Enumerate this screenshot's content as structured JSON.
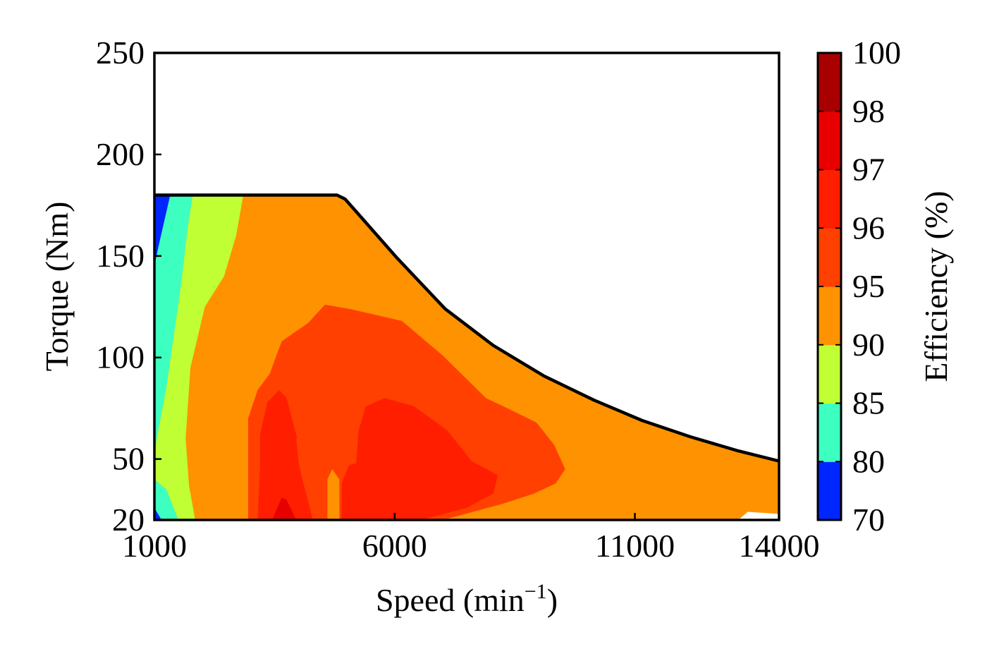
{
  "chart_data": {
    "type": "heatmap",
    "subtype": "filled-contour efficiency map",
    "title": "",
    "xlabel": "Speed (min",
    "xlabel_superscript": "−1",
    "xlabel_suffix": ")",
    "ylabel": "Torque (Nm)",
    "colorbar_label": "Efficiency (%)",
    "xlim": [
      1000,
      14000
    ],
    "ylim": [
      20,
      250
    ],
    "x_ticks": [
      1000,
      6000,
      11000,
      14000
    ],
    "x_tick_labels": [
      "1000",
      "6000",
      "11000",
      "14000"
    ],
    "y_ticks": [
      20,
      50,
      100,
      150,
      200,
      250
    ],
    "y_tick_labels": [
      "20",
      "50",
      "100",
      "150",
      "200",
      "250"
    ],
    "grid": false,
    "levels": [
      70,
      80,
      85,
      90,
      95,
      96,
      97,
      98,
      100
    ],
    "level_labels": [
      "70",
      "80",
      "85",
      "90",
      "95",
      "96",
      "97",
      "98",
      "100"
    ],
    "level_colors": [
      "#0026ff",
      "#3dffc0",
      "#c1ff35",
      "#ff9200",
      "#ff4000",
      "#ff1e00",
      "#e80000",
      "#a80000"
    ],
    "torque_envelope": [
      [
        1000,
        180
      ],
      [
        4800,
        180
      ],
      [
        4970,
        178
      ],
      [
        6050,
        149
      ],
      [
        7050,
        124
      ],
      [
        8050,
        106
      ],
      [
        9100,
        91
      ],
      [
        10150,
        79
      ],
      [
        11150,
        69
      ],
      [
        12150,
        61
      ],
      [
        13150,
        54
      ],
      [
        14000,
        49
      ]
    ],
    "regions": [
      {
        "level": "70-80",
        "color": "#0026ff",
        "polygons": [
          [
            [
              1000,
              180
            ],
            [
              1330,
              180
            ],
            [
              1090,
              155
            ],
            [
              1000,
              145
            ]
          ],
          [
            [
              1000,
              20
            ],
            [
              1150,
              20
            ],
            [
              1000,
              26
            ]
          ]
        ]
      },
      {
        "level": "80-85",
        "color": "#3dffc0",
        "polygons": [
          [
            [
              1330,
              180
            ],
            [
              1800,
              180
            ],
            [
              1700,
              165
            ],
            [
              1550,
              135
            ],
            [
              1250,
              85
            ],
            [
              1050,
              60
            ],
            [
              1000,
              50
            ],
            [
              1000,
              145
            ],
            [
              1090,
              155
            ]
          ],
          [
            [
              1150,
              20
            ],
            [
              1500,
              20
            ],
            [
              1250,
              35
            ],
            [
              1000,
              40
            ],
            [
              1000,
              26
            ]
          ]
        ]
      },
      {
        "level": "85-90",
        "color": "#c1ff35",
        "polygons": [
          [
            [
              1800,
              180
            ],
            [
              2850,
              180
            ],
            [
              2700,
              160
            ],
            [
              2450,
              140
            ],
            [
              2050,
              125
            ],
            [
              1750,
              95
            ],
            [
              1650,
              60
            ],
            [
              1720,
              37
            ],
            [
              1850,
              20
            ],
            [
              1500,
              20
            ],
            [
              1250,
              35
            ],
            [
              1000,
              40
            ],
            [
              1000,
              50
            ],
            [
              1050,
              60
            ],
            [
              1250,
              85
            ],
            [
              1550,
              135
            ],
            [
              1700,
              165
            ]
          ]
        ]
      }
    ],
    "band_order_note": "region polygons listed above; inner bands 90-95, 95-96, 96-97, 97-98 nested in order toward the peak near 4000 min-1"
  }
}
